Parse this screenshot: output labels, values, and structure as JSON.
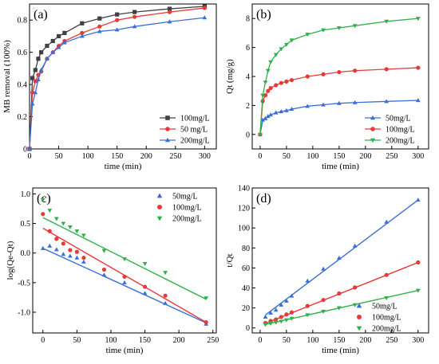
{
  "chart_data": [
    {
      "panel": "(a)",
      "type": "line",
      "xlabel": "time (min)",
      "ylabel": "MB removal (100%)",
      "xlim": [
        0,
        320
      ],
      "ylim": [
        0,
        0.9
      ],
      "xticks": [
        0,
        50,
        100,
        150,
        200,
        250,
        300
      ],
      "yticks": [
        0.0,
        0.2,
        0.4,
        0.6,
        0.8
      ],
      "ytick_labels": [
        "0",
        "0.2",
        "0.4",
        "0.6",
        "0.8"
      ],
      "legend_position": "bottom-right",
      "series": [
        {
          "name": "100mg/L",
          "color": "#404040",
          "marker": "square",
          "line": true,
          "x": [
            0,
            5,
            10,
            15,
            20,
            30,
            40,
            50,
            60,
            90,
            120,
            150,
            180,
            240,
            300
          ],
          "y": [
            0,
            0.44,
            0.49,
            0.56,
            0.6,
            0.64,
            0.67,
            0.7,
            0.72,
            0.78,
            0.81,
            0.835,
            0.85,
            0.87,
            0.885
          ]
        },
        {
          "name": "50 mg/L",
          "color": "#e8393a",
          "marker": "circle",
          "line": true,
          "x": [
            0,
            5,
            10,
            15,
            20,
            30,
            40,
            50,
            60,
            90,
            120,
            150,
            180,
            240,
            300
          ],
          "y": [
            0,
            0.35,
            0.42,
            0.46,
            0.48,
            0.56,
            0.6,
            0.64,
            0.67,
            0.72,
            0.76,
            0.8,
            0.82,
            0.85,
            0.875
          ]
        },
        {
          "name": "200mg/L",
          "color": "#3a6fd8",
          "marker": "triangle-up",
          "line": true,
          "x": [
            0,
            5,
            10,
            15,
            20,
            30,
            40,
            50,
            60,
            90,
            120,
            150,
            180,
            240,
            300
          ],
          "y": [
            0,
            0.28,
            0.35,
            0.43,
            0.49,
            0.56,
            0.6,
            0.63,
            0.66,
            0.7,
            0.73,
            0.74,
            0.76,
            0.79,
            0.815
          ]
        }
      ]
    },
    {
      "panel": "(b)",
      "type": "line",
      "xlabel": "time (min)",
      "ylabel": "Qt (mg/g)",
      "xlim": [
        -15,
        320
      ],
      "ylim": [
        -1,
        9
      ],
      "xticks": [
        0,
        50,
        100,
        150,
        200,
        250,
        300
      ],
      "yticks": [
        0,
        2,
        4,
        6,
        8
      ],
      "legend_position": "bottom-right",
      "series": [
        {
          "name": "50mg/L",
          "color": "#3a6fd8",
          "marker": "triangle-up",
          "line": true,
          "x": [
            0,
            5,
            10,
            15,
            20,
            30,
            40,
            50,
            60,
            90,
            120,
            150,
            180,
            240,
            300
          ],
          "y": [
            0,
            1.0,
            1.1,
            1.25,
            1.35,
            1.5,
            1.58,
            1.65,
            1.75,
            1.95,
            2.05,
            2.15,
            2.2,
            2.28,
            2.35
          ]
        },
        {
          "name": "100mg/L",
          "color": "#e8393a",
          "marker": "circle",
          "line": true,
          "x": [
            0,
            5,
            10,
            15,
            20,
            30,
            40,
            50,
            60,
            90,
            120,
            150,
            180,
            240,
            300
          ],
          "y": [
            0,
            2.3,
            2.7,
            3.0,
            3.2,
            3.4,
            3.55,
            3.65,
            3.75,
            4.0,
            4.15,
            4.3,
            4.4,
            4.5,
            4.6
          ]
        },
        {
          "name": "200mg/L",
          "color": "#2eb04a",
          "marker": "triangle-down",
          "line": true,
          "x": [
            0,
            5,
            10,
            15,
            20,
            30,
            40,
            50,
            60,
            90,
            120,
            150,
            180,
            240,
            300
          ],
          "y": [
            0,
            2.7,
            3.6,
            4.4,
            5.0,
            5.5,
            5.9,
            6.2,
            6.5,
            6.9,
            7.2,
            7.35,
            7.5,
            7.8,
            8.0
          ]
        }
      ]
    },
    {
      "panel": "(c)",
      "type": "scatter",
      "xlabel": "time (min)",
      "ylabel": "log(Qe-Qt)",
      "xlim": [
        -15,
        255
      ],
      "ylim": [
        -1.35,
        1.1
      ],
      "xticks": [
        0,
        50,
        100,
        150,
        200,
        250
      ],
      "yticks": [
        -1.0,
        -0.5,
        0.0,
        0.5,
        1.0
      ],
      "ytick_labels": [
        "-1.0",
        "-0.5",
        "0.0",
        "0.5",
        "1.0"
      ],
      "legend_position": "top-right",
      "series": [
        {
          "name": "50mg/L",
          "color": "#3a6fd8",
          "marker": "triangle-up",
          "x": [
            0,
            10,
            20,
            30,
            40,
            50,
            60,
            90,
            120,
            150,
            180,
            240
          ],
          "y": [
            0.08,
            0.12,
            0.06,
            -0.02,
            -0.05,
            -0.08,
            -0.15,
            -0.37,
            -0.5,
            -0.68,
            -0.85,
            -1.2
          ],
          "fit": {
            "x": [
              0,
              240
            ],
            "y": [
              0.08,
              -1.18
            ]
          }
        },
        {
          "name": "100mg/L",
          "color": "#e8393a",
          "marker": "circle",
          "x": [
            0,
            10,
            20,
            30,
            40,
            50,
            60,
            90,
            120,
            150,
            180,
            240
          ],
          "y": [
            0.66,
            0.37,
            0.24,
            0.16,
            0.05,
            0.02,
            -0.08,
            -0.28,
            -0.4,
            -0.57,
            -0.72,
            -1.17
          ],
          "fit": {
            "x": [
              0,
              240
            ],
            "y": [
              0.42,
              -1.17
            ]
          }
        },
        {
          "name": "200mg/L",
          "color": "#2eb04a",
          "marker": "triangle-down",
          "x": [
            0,
            10,
            20,
            30,
            40,
            50,
            60,
            90,
            120,
            150,
            180,
            240
          ],
          "y": [
            0.9,
            0.72,
            0.58,
            0.5,
            0.44,
            0.37,
            0.3,
            0.04,
            -0.1,
            -0.18,
            -0.33,
            -0.76
          ],
          "fit": {
            "x": [
              0,
              240
            ],
            "y": [
              0.6,
              -0.78
            ]
          }
        }
      ]
    },
    {
      "panel": "(d)",
      "type": "scatter",
      "xlabel": "time (min)",
      "ylabel": "t/Qt",
      "xlim": [
        -15,
        320
      ],
      "ylim": [
        -5,
        140
      ],
      "xticks": [
        0,
        50,
        100,
        150,
        200,
        250,
        300
      ],
      "yticks": [
        0,
        20,
        40,
        60,
        80,
        100,
        120,
        140
      ],
      "legend_position": "bottom-right",
      "series": [
        {
          "name": "50mg/L",
          "color": "#3a6fd8",
          "marker": "triangle-up",
          "x": [
            10,
            20,
            30,
            40,
            50,
            60,
            90,
            120,
            150,
            180,
            240,
            300
          ],
          "y": [
            11,
            15,
            18,
            23,
            27,
            32,
            47,
            59,
            70,
            82,
            106,
            128
          ],
          "fit": {
            "x": [
              10,
              300
            ],
            "y": [
              13,
              128
            ]
          }
        },
        {
          "name": "100mg/L",
          "color": "#e8393a",
          "marker": "circle",
          "x": [
            10,
            20,
            30,
            40,
            50,
            60,
            90,
            120,
            150,
            180,
            240,
            300
          ],
          "y": [
            5,
            7,
            8.5,
            11,
            13.5,
            15.5,
            22,
            28,
            34.5,
            40.5,
            53,
            65.5
          ],
          "fit": {
            "x": [
              10,
              300
            ],
            "y": [
              4.5,
              65.5
            ]
          }
        },
        {
          "name": "200mg/L",
          "color": "#2eb04a",
          "marker": "triangle-down",
          "x": [
            10,
            20,
            30,
            40,
            50,
            60,
            90,
            120,
            150,
            180,
            240,
            300
          ],
          "y": [
            3.5,
            4.5,
            5.5,
            6.5,
            8,
            9.5,
            13,
            16.5,
            20,
            23,
            30,
            37.5
          ],
          "fit": {
            "x": [
              10,
              300
            ],
            "y": [
              3.5,
              37.5
            ]
          }
        }
      ]
    }
  ]
}
